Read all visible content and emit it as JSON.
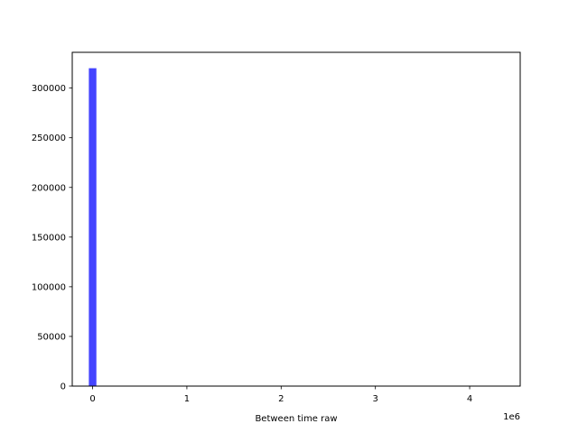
{
  "chart_data": {
    "type": "bar",
    "title": "",
    "xlabel": "Between time raw",
    "ylabel": "",
    "x_offset_label": "1e6",
    "x_scale": 1000000,
    "xlim": [
      -0.216,
      4.536
    ],
    "ylim": [
      0,
      336000
    ],
    "xticks": [
      0,
      1,
      2,
      3,
      4
    ],
    "xtick_labels": [
      "0",
      "1",
      "2",
      "3",
      "4"
    ],
    "yticks": [
      0,
      50000,
      100000,
      150000,
      200000,
      250000,
      300000
    ],
    "ytick_labels": [
      "0",
      "50000",
      "100000",
      "150000",
      "200000",
      "250000",
      "300000"
    ],
    "bins": [
      {
        "x0": -0.04,
        "x1": 0.04,
        "count": 320000
      }
    ],
    "bar_color": "#4444ff",
    "grid": false
  }
}
